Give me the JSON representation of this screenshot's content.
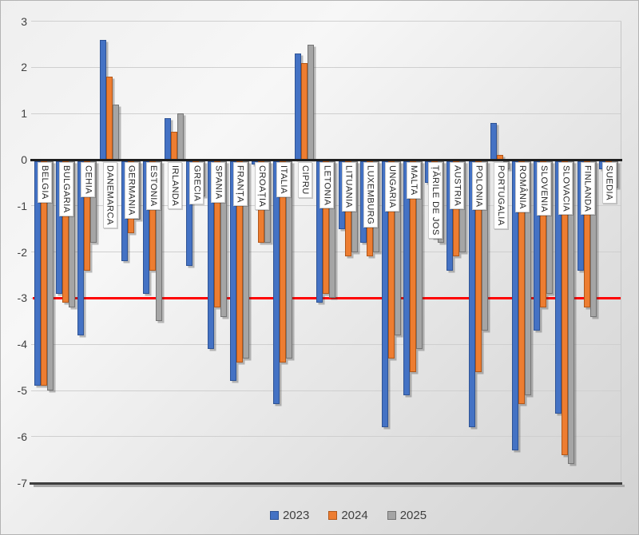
{
  "chart_data": {
    "type": "bar",
    "title": "",
    "categories": [
      "BELGIA",
      "BULGARIA",
      "CEHIA",
      "DANEMARCA",
      "GERMANIA",
      "ESTONIA",
      "IRLANDA",
      "GRECIA",
      "SPANIA",
      "FRANȚA",
      "CROAȚIA",
      "ITALIA",
      "CIPRU",
      "LETONIA",
      "LITUANIA",
      "LUXEMBURG",
      "UNGARIA",
      "MALTA",
      "ȚĂRILE DE JOS",
      "AUSTRIA",
      "POLONIA",
      "PORTUGALIA",
      "ROMÂNIA",
      "SLOVENIA",
      "SLOVACIA",
      "FINLANDA",
      "SUEDIA"
    ],
    "series": [
      {
        "name": "2023",
        "color": "#4472C4",
        "border_color": "#2e5395",
        "values": [
          -4.9,
          -2.9,
          -3.8,
          2.6,
          -2.2,
          -2.9,
          0.9,
          -2.3,
          -4.1,
          -4.8,
          -0.1,
          -5.3,
          2.3,
          -3.1,
          -1.5,
          -1.8,
          -5.8,
          -5.1,
          -0.5,
          -2.4,
          -5.8,
          0.8,
          -6.3,
          -3.7,
          -5.5,
          -2.4,
          -0.2
        ]
      },
      {
        "name": "2024",
        "color": "#ED7D31",
        "border_color": "#b25719",
        "values": [
          -4.9,
          -3.1,
          -2.4,
          1.8,
          -1.6,
          -2.4,
          0.6,
          -0.9,
          -3.2,
          -4.4,
          -1.8,
          -4.4,
          2.1,
          -2.9,
          -2.1,
          -2.1,
          -4.3,
          -4.6,
          -1.7,
          -2.1,
          -4.6,
          0.1,
          -5.3,
          -3.2,
          -6.4,
          -3.2,
          -0.5
        ]
      },
      {
        "name": "2025",
        "color": "#A5A5A5",
        "border_color": "#757575",
        "values": [
          -5.0,
          -3.2,
          -1.8,
          1.2,
          -1.3,
          -3.5,
          1.0,
          -0.8,
          -3.4,
          -4.3,
          -1.8,
          -4.3,
          2.5,
          -3.0,
          -2.0,
          -2.0,
          -3.8,
          -4.1,
          -1.8,
          -2.0,
          -3.7,
          -0.2,
          -5.1,
          -2.9,
          -6.6,
          -3.4,
          -0.6
        ]
      }
    ],
    "ylim": [
      -7,
      3
    ],
    "yticks": [
      3,
      2,
      1,
      0,
      -1,
      -2,
      -3,
      -4,
      -5,
      -6,
      -7
    ],
    "grid": true,
    "reference_line": {
      "value": -3,
      "color": "#FF0000"
    },
    "axis_line_color": "#1f1f1f",
    "legend_position": "bottom"
  },
  "legend": {
    "items": [
      {
        "label": "2023"
      },
      {
        "label": "2024"
      },
      {
        "label": "2025"
      }
    ]
  }
}
